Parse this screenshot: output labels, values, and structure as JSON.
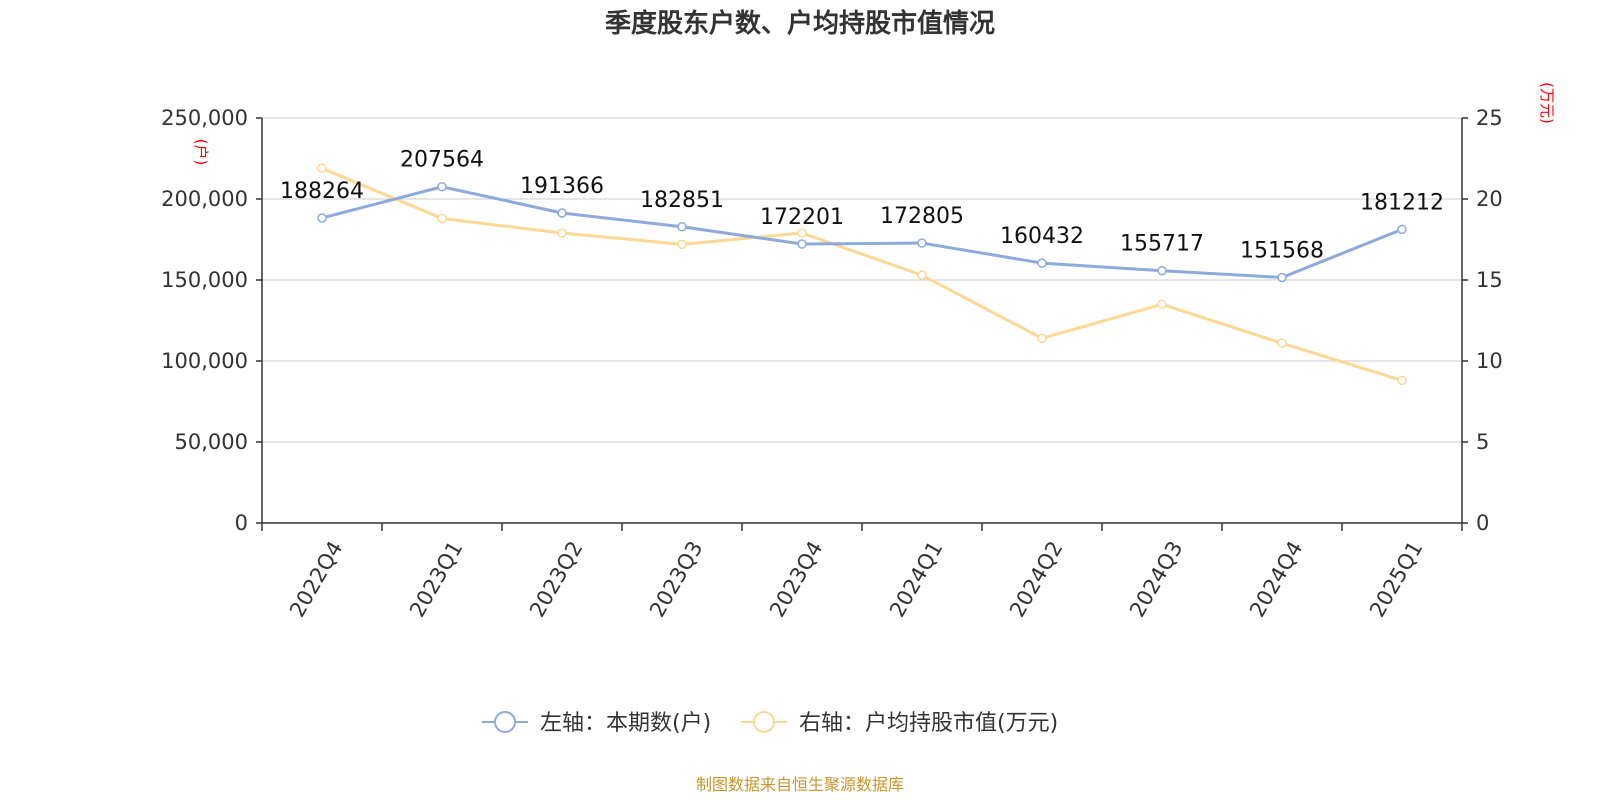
{
  "title": "季度股东户数、户均持股市值情况",
  "source": "制图数据来自恒生聚源数据库",
  "chart_data": {
    "type": "line",
    "title": "季度股东户数、户均持股市值情况",
    "categories": [
      "2022Q4",
      "2023Q1",
      "2023Q2",
      "2023Q3",
      "2023Q4",
      "2024Q1",
      "2024Q2",
      "2024Q3",
      "2024Q4",
      "2025Q1"
    ],
    "left_axis": {
      "unit": "(户)",
      "range": [
        0,
        250000
      ],
      "ticks": [
        0,
        50000,
        100000,
        150000,
        200000,
        250000
      ],
      "tick_labels": [
        "0",
        "50,000",
        "100,000",
        "150,000",
        "200,000",
        "250,000"
      ]
    },
    "right_axis": {
      "unit": "(万元)",
      "range": [
        0,
        25
      ],
      "ticks": [
        0,
        5,
        10,
        15,
        20,
        25
      ],
      "tick_labels": [
        "0",
        "5",
        "10",
        "15",
        "20",
        "25"
      ]
    },
    "grid": true,
    "legend_position": "bottom",
    "series": [
      {
        "name": "左轴：本期数(户)",
        "axis": "left",
        "color": "#8eaadb",
        "values": [
          188264,
          207564,
          191366,
          182851,
          172201,
          172805,
          160432,
          155717,
          151568,
          181212
        ],
        "labels": [
          "188264",
          "207564",
          "191366",
          "182851",
          "172201",
          "172805",
          "160432",
          "155717",
          "151568",
          "181212"
        ]
      },
      {
        "name": "右轴：户均持股市值(万元)",
        "axis": "right",
        "color": "#fcd795",
        "values": [
          21.9,
          18.8,
          17.9,
          17.2,
          17.9,
          15.3,
          11.4,
          13.5,
          11.1,
          8.8
        ]
      }
    ]
  }
}
